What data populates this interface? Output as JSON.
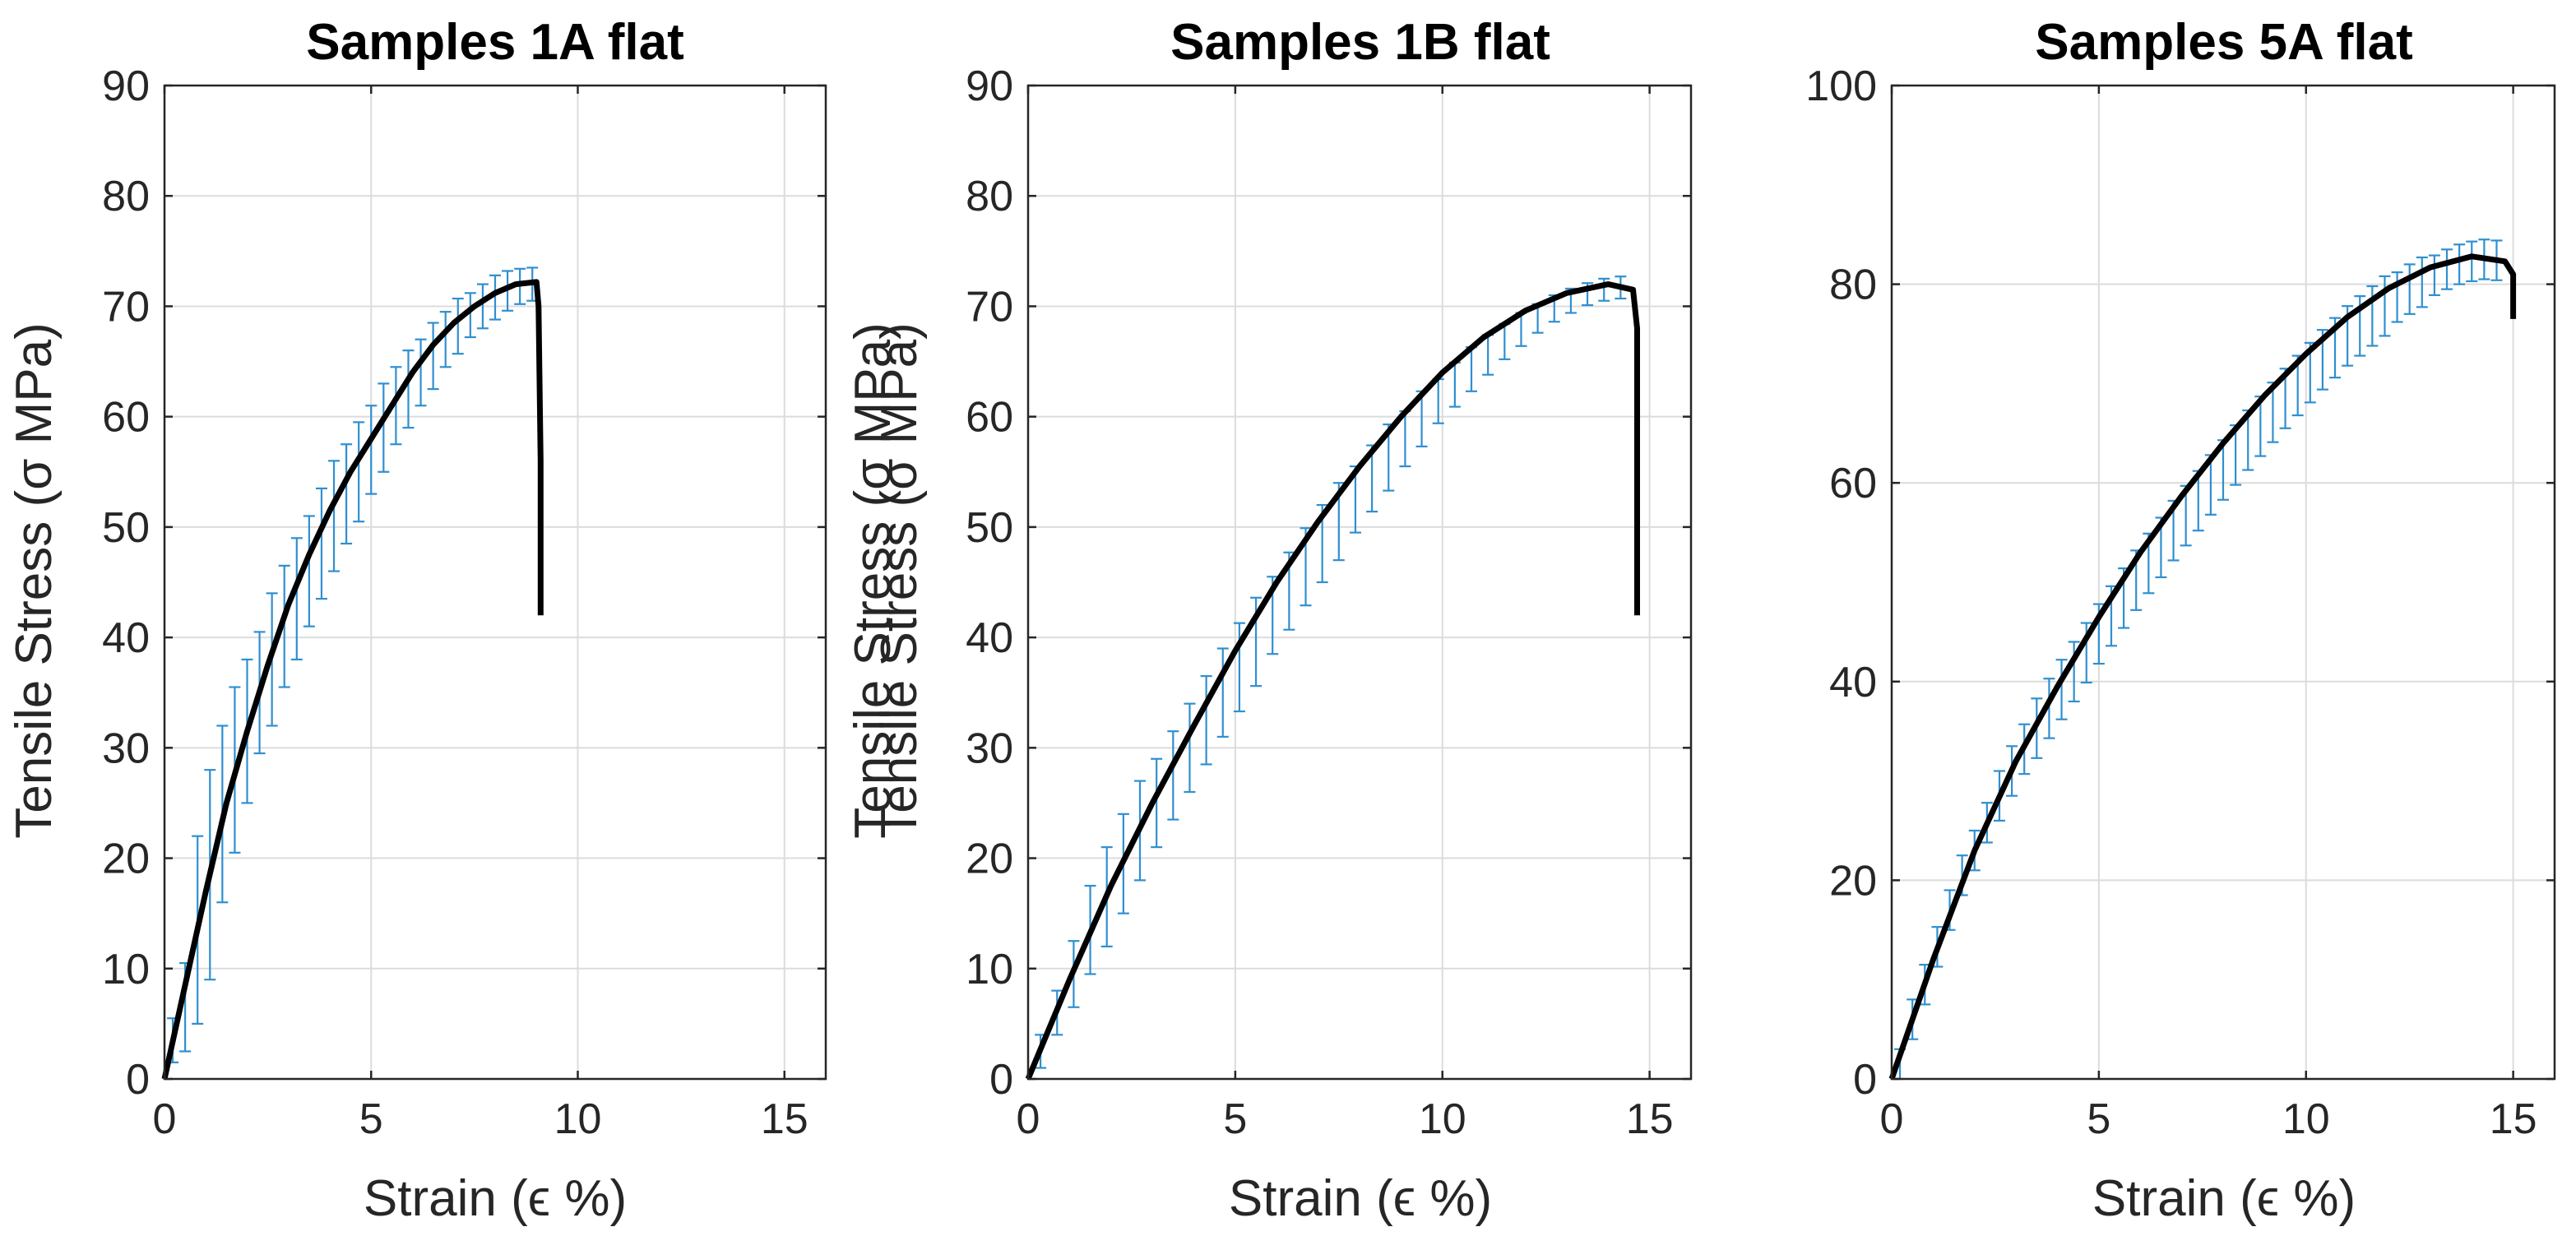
{
  "colors": {
    "background": "#ffffff",
    "mean_curve": "#000000",
    "error_bars": "#2f8fd0",
    "axes": "#262626",
    "grid": "#dcdcdc"
  },
  "chart_data": [
    {
      "type": "line",
      "title": "Samples 1A flat",
      "xlabel": "Strain (ϵ %)",
      "ylabel": "Tensile Stress (σ MPa)",
      "xlim": [
        0,
        16
      ],
      "ylim": [
        0,
        90
      ],
      "xticks": [
        0,
        5,
        10,
        15
      ],
      "yticks": [
        0,
        10,
        20,
        30,
        40,
        50,
        60,
        70,
        80,
        90
      ],
      "grid": true,
      "series": [
        {
          "name": "mean",
          "style": "line",
          "x": [
            0,
            0.5,
            1.0,
            1.5,
            2.0,
            2.5,
            3.0,
            3.5,
            4.0,
            4.5,
            5.0,
            5.5,
            6.0,
            6.5,
            7.0,
            7.5,
            8.0,
            8.5,
            9.0,
            9.05,
            9.1,
            9.1
          ],
          "y": [
            0,
            8.5,
            17,
            25,
            31.5,
            37.5,
            43,
            47.5,
            51.5,
            55,
            58,
            61,
            64,
            66.5,
            68.5,
            70,
            71.2,
            72,
            72.2,
            70,
            56,
            42
          ]
        },
        {
          "name": "error",
          "style": "errorbar",
          "x": [
            0.2,
            0.5,
            0.8,
            1.1,
            1.4,
            1.7,
            2.0,
            2.3,
            2.6,
            2.9,
            3.2,
            3.5,
            3.8,
            4.1,
            4.4,
            4.7,
            5.0,
            5.3,
            5.6,
            5.9,
            6.2,
            6.5,
            6.8,
            7.1,
            7.4,
            7.7,
            8.0,
            8.3,
            8.6,
            8.9
          ],
          "y": [
            3.5,
            6.5,
            13.5,
            18.5,
            24,
            28,
            31.5,
            35,
            38,
            41,
            43.5,
            46,
            48.5,
            51,
            53,
            55,
            57,
            59,
            61,
            62.5,
            64,
            65.5,
            67,
            68.2,
            69.2,
            70,
            70.8,
            71.4,
            71.8,
            72
          ],
          "err": [
            2,
            4,
            8.5,
            9.5,
            8,
            7.5,
            6.5,
            5.5,
            6,
            5.5,
            5.5,
            5,
            5,
            5,
            4.5,
            4.5,
            4,
            4,
            3.5,
            3.5,
            3,
            3,
            2.5,
            2.5,
            2,
            2,
            2,
            1.8,
            1.6,
            1.5
          ]
        }
      ]
    },
    {
      "type": "line",
      "title": "Samples 1B flat",
      "xlabel": "Strain (ϵ %)",
      "ylabel": "Tensile Stress (σ MPa)",
      "xlim": [
        0,
        16
      ],
      "ylim": [
        0,
        90
      ],
      "xticks": [
        0,
        5,
        10,
        15
      ],
      "yticks": [
        0,
        10,
        20,
        30,
        40,
        50,
        60,
        70,
        80,
        90
      ],
      "grid": true,
      "series": [
        {
          "name": "mean",
          "style": "line",
          "x": [
            0,
            1,
            2,
            3,
            4,
            5,
            6,
            7,
            8,
            9,
            10,
            11,
            12,
            13,
            14,
            14.6,
            14.7,
            14.7
          ],
          "y": [
            0,
            9,
            17.5,
            25,
            32,
            38.8,
            45,
            50.5,
            55.5,
            60,
            64,
            67.2,
            69.6,
            71.2,
            72,
            71.5,
            68,
            42
          ]
        },
        {
          "name": "error",
          "style": "errorbar",
          "x": [
            0.3,
            0.7,
            1.1,
            1.5,
            1.9,
            2.3,
            2.7,
            3.1,
            3.5,
            3.9,
            4.3,
            4.7,
            5.1,
            5.5,
            5.9,
            6.3,
            6.7,
            7.1,
            7.5,
            7.9,
            8.3,
            8.7,
            9.1,
            9.5,
            9.9,
            10.3,
            10.7,
            11.1,
            11.5,
            11.9,
            12.3,
            12.7,
            13.1,
            13.5,
            13.9,
            14.3
          ],
          "y": [
            2.5,
            6,
            9.5,
            13.5,
            16.5,
            19.5,
            22.5,
            25,
            27.5,
            30,
            32.5,
            35,
            37.3,
            39.6,
            42,
            44.2,
            46.4,
            48.5,
            50.5,
            52.5,
            54.4,
            56.3,
            58,
            59.8,
            61.4,
            62.9,
            64.3,
            65.6,
            66.8,
            67.9,
            68.9,
            69.8,
            70.5,
            71.1,
            71.5,
            71.7
          ],
          "err": [
            1.5,
            2,
            3,
            4,
            4.5,
            4.5,
            4.5,
            4,
            4,
            4,
            4,
            4,
            4,
            4,
            3.5,
            3.5,
            3.5,
            3.5,
            3.5,
            3,
            3,
            3,
            2.5,
            2.5,
            2,
            2,
            2,
            1.8,
            1.6,
            1.5,
            1.3,
            1.2,
            1.1,
            1,
            1,
            1
          ]
        }
      ]
    },
    {
      "type": "line",
      "title": "Samples 5A flat",
      "xlabel": "Strain (ϵ %)",
      "ylabel": "Tensile Stress (σ MPa)",
      "xlim": [
        0,
        16
      ],
      "ylim": [
        0,
        100
      ],
      "xticks": [
        0,
        5,
        10,
        15
      ],
      "yticks": [
        0,
        20,
        40,
        60,
        80,
        100
      ],
      "grid": true,
      "series": [
        {
          "name": "mean",
          "style": "line",
          "x": [
            0,
            1,
            2,
            3,
            4,
            5,
            6,
            7,
            8,
            9,
            10,
            11,
            12,
            13,
            14,
            14.8,
            15.0,
            15.0
          ],
          "y": [
            0,
            12,
            23,
            32,
            39.5,
            46.5,
            53,
            58.7,
            64,
            68.8,
            73,
            76.7,
            79.6,
            81.7,
            82.8,
            82.3,
            81,
            76.5
          ]
        },
        {
          "name": "error",
          "style": "errorbar",
          "x": [
            0.2,
            0.5,
            0.8,
            1.1,
            1.4,
            1.7,
            2.0,
            2.3,
            2.6,
            2.9,
            3.2,
            3.5,
            3.8,
            4.1,
            4.4,
            4.7,
            5.0,
            5.3,
            5.6,
            5.9,
            6.2,
            6.5,
            6.8,
            7.1,
            7.4,
            7.7,
            8.0,
            8.3,
            8.6,
            8.9,
            9.2,
            9.5,
            9.8,
            10.1,
            10.4,
            10.7,
            11.0,
            11.3,
            11.6,
            11.9,
            12.2,
            12.5,
            12.8,
            13.1,
            13.4,
            13.7,
            14.0,
            14.3,
            14.6
          ],
          "y": [
            1.5,
            6,
            9.5,
            13.3,
            17,
            20.5,
            23,
            25.8,
            28.5,
            31,
            33.2,
            35.3,
            37.3,
            39.2,
            41,
            42.9,
            44.8,
            46.6,
            48.4,
            50.2,
            51.9,
            53.5,
            55.2,
            56.7,
            58.2,
            59.8,
            61.3,
            62.8,
            64.3,
            65.7,
            67.1,
            68.5,
            69.8,
            71.1,
            72.4,
            73.6,
            74.8,
            75.8,
            76.8,
            77.8,
            78.7,
            79.5,
            80.2,
            80.9,
            81.5,
            82,
            82.3,
            82.5,
            82.4
          ],
          "err": [
            1.5,
            2,
            2,
            2,
            2,
            2,
            2,
            2,
            2.5,
            2.5,
            2.5,
            3,
            3,
            3,
            3,
            3,
            3,
            3,
            3,
            3,
            3,
            3,
            3,
            3,
            3,
            3,
            3,
            3,
            3,
            3,
            3,
            3,
            3,
            3,
            3,
            3,
            3,
            3,
            3,
            3,
            2.5,
            2.5,
            2.5,
            2,
            2,
            2,
            2,
            2,
            2
          ]
        }
      ]
    }
  ]
}
